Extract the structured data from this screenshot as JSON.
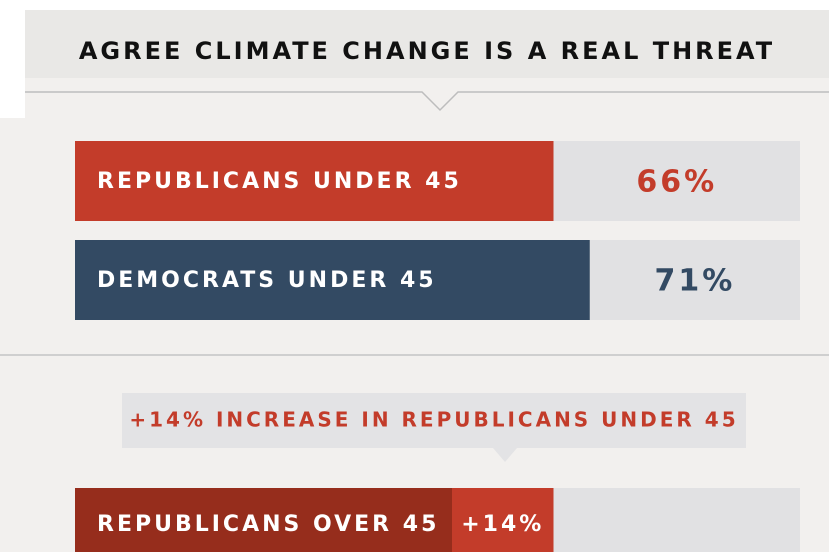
{
  "chart_data": [
    {
      "type": "bar",
      "orientation": "horizontal",
      "title": "AGREE CLIMATE CHANGE IS A REAL THREAT",
      "categories": [
        "REPUBLICANS UNDER 45",
        "DEMOCRATS UNDER 45"
      ],
      "values": [
        66,
        71
      ],
      "value_labels": [
        "66%",
        "71%"
      ],
      "colors": [
        "#c33c2a",
        "#334a63"
      ],
      "xlim": [
        0,
        100
      ]
    },
    {
      "type": "stacked_bar",
      "orientation": "horizontal",
      "annotation": "+14% INCREASE IN REPUBLICANS UNDER 45",
      "categories": [
        "REPUBLICANS OVER 45"
      ],
      "series": [
        {
          "color": "#962d1c",
          "values": [
            52
          ]
        },
        {
          "color": "#c33c2a",
          "values": [
            14
          ],
          "value_labels": [
            "+14%"
          ]
        }
      ],
      "xlim": [
        0,
        100
      ]
    }
  ]
}
